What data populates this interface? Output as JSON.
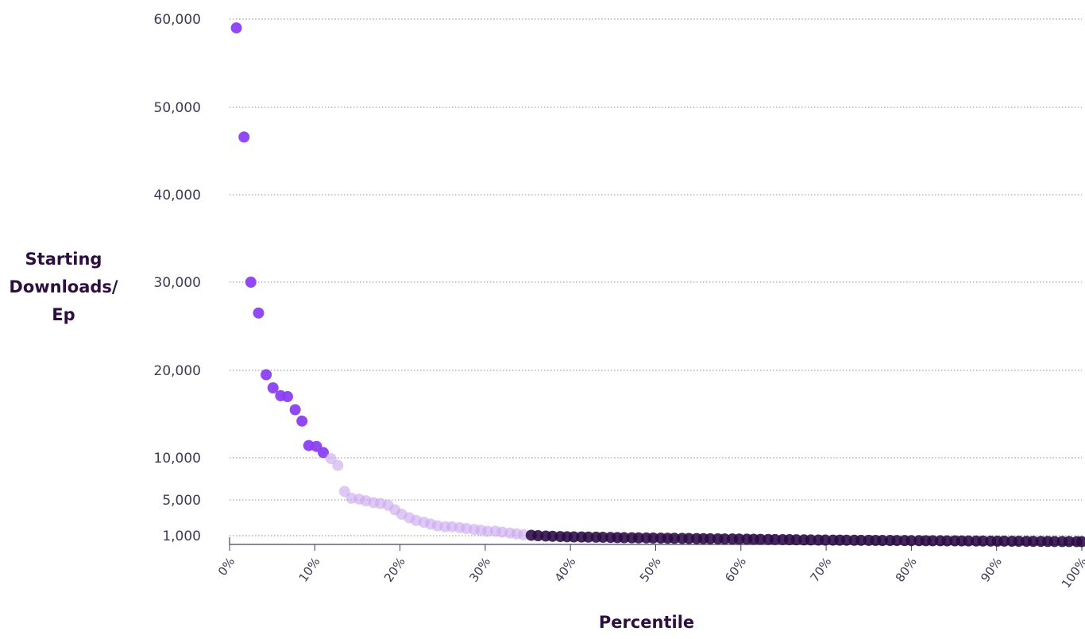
{
  "chart_data": {
    "type": "scatter",
    "title": "",
    "xlabel": "Percentile",
    "ylabel_lines": [
      "Starting",
      "Downloads/",
      "Ep"
    ],
    "ylabel": "Starting Downloads/ Ep",
    "xlim": [
      0,
      100
    ],
    "ylim": [
      0,
      60000
    ],
    "x_ticks": [
      0,
      10,
      20,
      30,
      40,
      50,
      60,
      70,
      80,
      90,
      100
    ],
    "x_tick_labels": [
      "0%",
      "10%",
      "20%",
      "30%",
      "40%",
      "50%",
      "60%",
      "70%",
      "80%",
      "90%",
      "100%"
    ],
    "y_ticks": [
      1000,
      5000,
      10000,
      20000,
      30000,
      40000,
      50000,
      60000
    ],
    "y_tick_labels": [
      "1,000",
      "5,000",
      "10,000",
      "20,000",
      "30,000",
      "40,000",
      "50,000",
      "60,000"
    ],
    "grid": true,
    "legend": "none",
    "series": [
      {
        "group": "top",
        "color": "#8b3ff2",
        "opacity": 0.95,
        "points": [
          [
            0.8,
            59000
          ],
          [
            1.7,
            46600
          ],
          [
            2.5,
            30000
          ],
          [
            3.4,
            26500
          ],
          [
            4.3,
            19500
          ],
          [
            5.1,
            18000
          ],
          [
            6.0,
            17100
          ],
          [
            6.8,
            17000
          ],
          [
            7.7,
            15500
          ],
          [
            8.5,
            14200
          ],
          [
            9.3,
            11400
          ],
          [
            10.2,
            11300
          ],
          [
            11.0,
            10600
          ]
        ]
      },
      {
        "group": "middle",
        "color": "#c9a8ef",
        "opacity": 0.62,
        "points": [
          [
            11.9,
            9900
          ],
          [
            12.7,
            9100
          ],
          [
            13.5,
            6000
          ],
          [
            14.3,
            5200
          ],
          [
            15.2,
            5100
          ],
          [
            16.0,
            4900
          ],
          [
            16.9,
            4700
          ],
          [
            17.7,
            4600
          ],
          [
            18.6,
            4400
          ],
          [
            19.4,
            3900
          ],
          [
            20.2,
            3400
          ],
          [
            21.1,
            3000
          ],
          [
            21.9,
            2700
          ],
          [
            22.8,
            2500
          ],
          [
            23.6,
            2300
          ],
          [
            24.4,
            2100
          ],
          [
            25.3,
            2000
          ],
          [
            26.1,
            2000
          ],
          [
            27.0,
            1900
          ],
          [
            27.8,
            1800
          ],
          [
            28.7,
            1700
          ],
          [
            29.5,
            1600
          ],
          [
            30.3,
            1500
          ],
          [
            31.2,
            1500
          ],
          [
            32.0,
            1400
          ],
          [
            32.9,
            1300
          ],
          [
            33.7,
            1200
          ],
          [
            34.5,
            1100
          ]
        ]
      },
      {
        "group": "bottom",
        "color": "#2a0a45",
        "opacity": 0.88,
        "points": [
          [
            35.4,
            1050
          ],
          [
            36.2,
            1000
          ],
          [
            37.1,
            960
          ],
          [
            37.9,
            930
          ],
          [
            38.8,
            900
          ],
          [
            39.6,
            880
          ],
          [
            40.4,
            860
          ],
          [
            41.3,
            850
          ],
          [
            42.1,
            840
          ],
          [
            43.0,
            830
          ],
          [
            43.8,
            820
          ],
          [
            44.7,
            800
          ],
          [
            45.5,
            780
          ],
          [
            46.3,
            770
          ],
          [
            47.2,
            760
          ],
          [
            48.0,
            750
          ],
          [
            48.9,
            740
          ],
          [
            49.7,
            730
          ],
          [
            50.6,
            720
          ],
          [
            51.4,
            710
          ],
          [
            52.2,
            700
          ],
          [
            53.1,
            690
          ],
          [
            53.9,
            680
          ],
          [
            54.8,
            670
          ],
          [
            55.6,
            660
          ],
          [
            56.4,
            650
          ],
          [
            57.3,
            640
          ],
          [
            58.1,
            630
          ],
          [
            59.0,
            620
          ],
          [
            59.8,
            610
          ],
          [
            60.7,
            600
          ],
          [
            61.5,
            590
          ],
          [
            62.3,
            580
          ],
          [
            63.2,
            570
          ],
          [
            64.0,
            560
          ],
          [
            64.9,
            550
          ],
          [
            65.7,
            540
          ],
          [
            66.5,
            530
          ],
          [
            67.4,
            520
          ],
          [
            68.2,
            510
          ],
          [
            69.1,
            500
          ],
          [
            69.9,
            495
          ],
          [
            70.8,
            490
          ],
          [
            71.6,
            485
          ],
          [
            72.4,
            480
          ],
          [
            73.3,
            475
          ],
          [
            74.1,
            470
          ],
          [
            75.0,
            465
          ],
          [
            75.8,
            460
          ],
          [
            76.6,
            455
          ],
          [
            77.5,
            450
          ],
          [
            78.3,
            445
          ],
          [
            79.2,
            440
          ],
          [
            80.0,
            435
          ],
          [
            80.9,
            430
          ],
          [
            81.7,
            425
          ],
          [
            82.5,
            420
          ],
          [
            83.4,
            415
          ],
          [
            84.2,
            410
          ],
          [
            85.1,
            405
          ],
          [
            85.9,
            400
          ],
          [
            86.7,
            395
          ],
          [
            87.6,
            390
          ],
          [
            88.4,
            385
          ],
          [
            89.3,
            380
          ],
          [
            90.1,
            375
          ],
          [
            90.9,
            370
          ],
          [
            91.8,
            365
          ],
          [
            92.6,
            360
          ],
          [
            93.5,
            355
          ],
          [
            94.3,
            350
          ],
          [
            95.2,
            345
          ],
          [
            96.0,
            340
          ],
          [
            96.8,
            335
          ],
          [
            97.7,
            330
          ],
          [
            98.5,
            325
          ],
          [
            99.4,
            320
          ],
          [
            100.0,
            315
          ]
        ]
      }
    ]
  }
}
